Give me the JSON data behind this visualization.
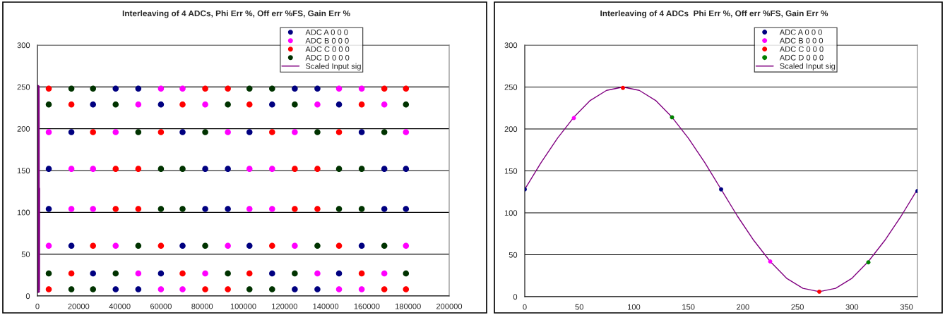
{
  "chart_data": [
    {
      "type": "scatter",
      "title": "Interleaving of 4 ADCs, Phi Err %, Off err %FS, Gain Err %",
      "xlim": [
        0,
        200000
      ],
      "xticks": [
        0,
        20000,
        40000,
        60000,
        80000,
        100000,
        120000,
        140000,
        160000,
        180000,
        200000
      ],
      "ylim": [
        0,
        300
      ],
      "yticks": [
        0,
        50,
        100,
        150,
        200,
        250,
        300
      ],
      "grid": "y",
      "legend": "top",
      "marker": "circle",
      "series": [
        {
          "name": "ADC A 0 0 0",
          "color": "#000080",
          "x": [
            5500,
            16500,
            27000,
            38000,
            49000,
            60000,
            70500,
            81500,
            92500,
            103000,
            114000,
            125000,
            136000,
            146500,
            157500,
            168500,
            179000,
            5500,
            16500,
            27000,
            38000,
            49000,
            60000,
            70500,
            81500,
            92500,
            103000,
            114000,
            125000,
            136000,
            146500,
            157500,
            168500,
            179000
          ],
          "values": [
            152,
            196,
            229,
            248,
            248,
            229,
            196,
            152,
            104,
            60,
            27,
            8,
            8,
            27,
            60,
            104,
            152,
            104,
            60,
            27,
            8,
            8,
            27,
            60,
            104,
            152,
            196,
            229,
            248,
            248,
            229,
            196,
            152,
            104
          ]
        },
        {
          "name": "ADC B 0 0 0",
          "color": "#ff00ff",
          "x": [
            5500,
            16500,
            27000,
            38000,
            49000,
            60000,
            70500,
            81500,
            92500,
            103000,
            114000,
            125000,
            136000,
            146500,
            157500,
            168500,
            179000,
            5500,
            16500,
            27000,
            38000,
            49000,
            60000,
            70500,
            81500,
            92500,
            103000,
            114000,
            125000,
            136000,
            146500,
            157500,
            168500,
            179000
          ],
          "values": [
            60,
            104,
            152,
            196,
            229,
            248,
            248,
            229,
            196,
            152,
            104,
            60,
            27,
            8,
            8,
            27,
            60,
            196,
            152,
            104,
            60,
            27,
            8,
            8,
            27,
            60,
            104,
            152,
            196,
            229,
            248,
            248,
            229,
            196
          ]
        },
        {
          "name": "ADC C 0 0 0",
          "color": "#ff0000",
          "x": [
            5500,
            16500,
            27000,
            38000,
            49000,
            60000,
            70500,
            81500,
            92500,
            103000,
            114000,
            125000,
            136000,
            146500,
            157500,
            168500,
            179000,
            5500,
            16500,
            27000,
            38000,
            49000,
            60000,
            70500,
            81500,
            92500,
            103000,
            114000,
            125000,
            136000,
            146500,
            157500,
            168500,
            179000
          ],
          "values": [
            8,
            27,
            60,
            104,
            152,
            196,
            229,
            248,
            248,
            229,
            196,
            152,
            104,
            60,
            27,
            8,
            8,
            248,
            229,
            196,
            152,
            104,
            60,
            27,
            8,
            8,
            27,
            60,
            104,
            152,
            196,
            229,
            248,
            248
          ]
        },
        {
          "name": "ADC D 0 0 0",
          "color": "#003300",
          "x": [
            5500,
            16500,
            27000,
            38000,
            49000,
            60000,
            70500,
            81500,
            92500,
            103000,
            114000,
            125000,
            136000,
            146500,
            157500,
            168500,
            179000,
            5500,
            16500,
            27000,
            38000,
            49000,
            60000,
            70500,
            81500,
            92500,
            103000,
            114000,
            125000,
            136000,
            146500,
            157500,
            168500,
            179000
          ],
          "values": [
            27,
            8,
            8,
            27,
            60,
            104,
            152,
            196,
            229,
            248,
            248,
            229,
            196,
            152,
            104,
            60,
            27,
            229,
            248,
            248,
            229,
            196,
            152,
            104,
            60,
            27,
            8,
            8,
            27,
            60,
            104,
            152,
            196,
            229
          ]
        },
        {
          "name": "Scaled Input sig",
          "color": "#800080",
          "type": "line",
          "marker": "none",
          "x": [
            0,
            15,
            30,
            45,
            60,
            75,
            90,
            105,
            120,
            135,
            150,
            165,
            180,
            195,
            210,
            225,
            240,
            255,
            270,
            285,
            300,
            315,
            330,
            345,
            360
          ],
          "values": [
            128,
            160,
            189,
            214,
            234,
            246,
            250,
            246,
            234,
            214,
            189,
            160,
            128,
            96,
            67,
            42,
            22,
            10,
            6,
            10,
            22,
            42,
            67,
            96,
            128
          ]
        }
      ]
    },
    {
      "type": "scatter",
      "title": "Interleaving of 4 ADCs  Phi Err %, Off err %FS, Gain Err %",
      "xlim": [
        0,
        360
      ],
      "xticks": [
        0,
        50,
        100,
        150,
        200,
        250,
        300,
        350
      ],
      "ylim": [
        0,
        300
      ],
      "yticks": [
        0,
        50,
        100,
        150,
        200,
        250,
        300
      ],
      "grid": "y",
      "legend": "top",
      "marker": "circle",
      "series": [
        {
          "name": "ADC A 0 0 0",
          "color": "#000080",
          "x": [
            0,
            180,
            360
          ],
          "values": [
            128,
            128,
            126
          ]
        },
        {
          "name": "ADC B 0 0 0",
          "color": "#ff00ff",
          "x": [
            45,
            225
          ],
          "values": [
            213,
            42
          ]
        },
        {
          "name": "ADC C 0 0 0",
          "color": "#ff0000",
          "x": [
            90,
            270
          ],
          "values": [
            249,
            6
          ]
        },
        {
          "name": "ADC D 0 0 0",
          "color": "#008000",
          "x": [
            135,
            315
          ],
          "values": [
            214,
            41
          ]
        },
        {
          "name": "Scaled Input sig",
          "color": "#800080",
          "type": "line",
          "marker": "none",
          "x": [
            0,
            15,
            30,
            45,
            60,
            75,
            90,
            105,
            120,
            135,
            150,
            165,
            180,
            195,
            210,
            225,
            240,
            255,
            270,
            285,
            300,
            315,
            330,
            345,
            360
          ],
          "values": [
            128,
            160,
            189,
            214,
            234,
            246,
            250,
            246,
            234,
            214,
            189,
            160,
            128,
            96,
            67,
            42,
            22,
            10,
            6,
            10,
            22,
            42,
            67,
            96,
            128
          ]
        }
      ]
    }
  ]
}
